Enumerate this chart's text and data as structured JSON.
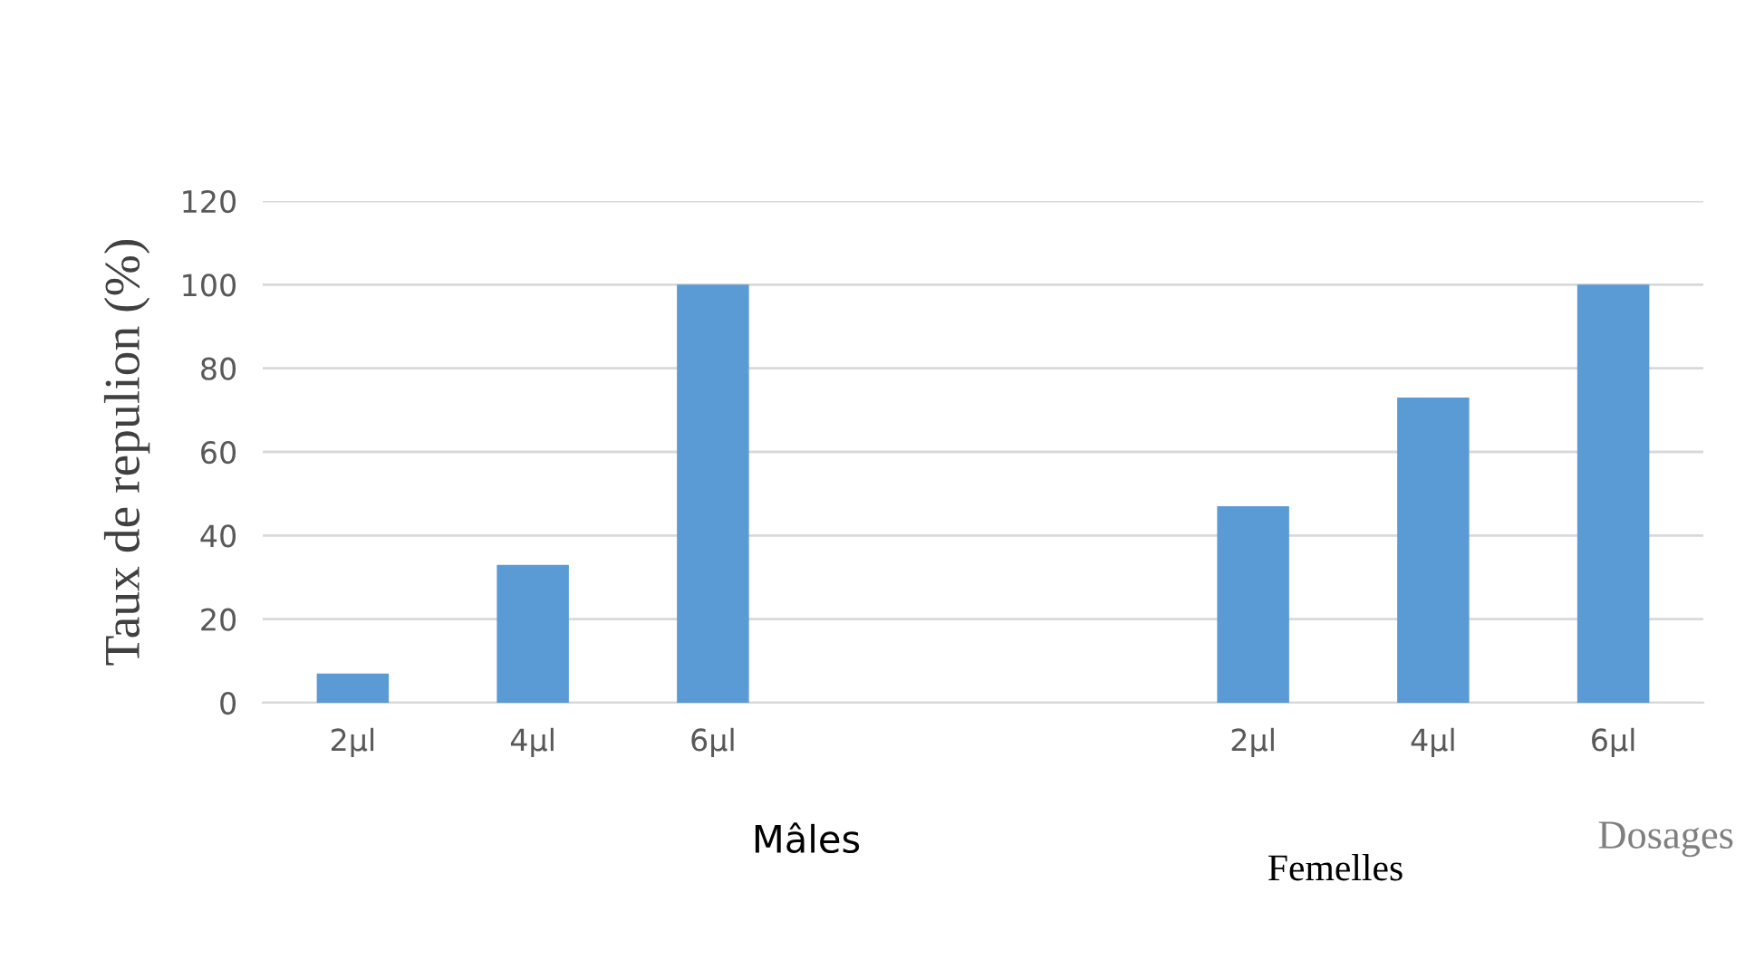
{
  "chart_data": {
    "type": "bar",
    "categories": [
      "2µl",
      "4µl",
      "6µl",
      null,
      null,
      "2µl",
      "4µl",
      "6µl"
    ],
    "values": [
      7,
      33,
      100,
      null,
      null,
      47,
      73,
      100
    ],
    "color": "#5b9bd5",
    "ylabel": "Taux de repulion (%)",
    "xlabel": "Dosages",
    "annotations": [
      "Mâles",
      "Femelles"
    ],
    "ylim": [
      0,
      120
    ],
    "yticks": [
      0,
      20,
      40,
      60,
      80,
      100,
      120
    ],
    "grid": "y",
    "legend": false
  }
}
